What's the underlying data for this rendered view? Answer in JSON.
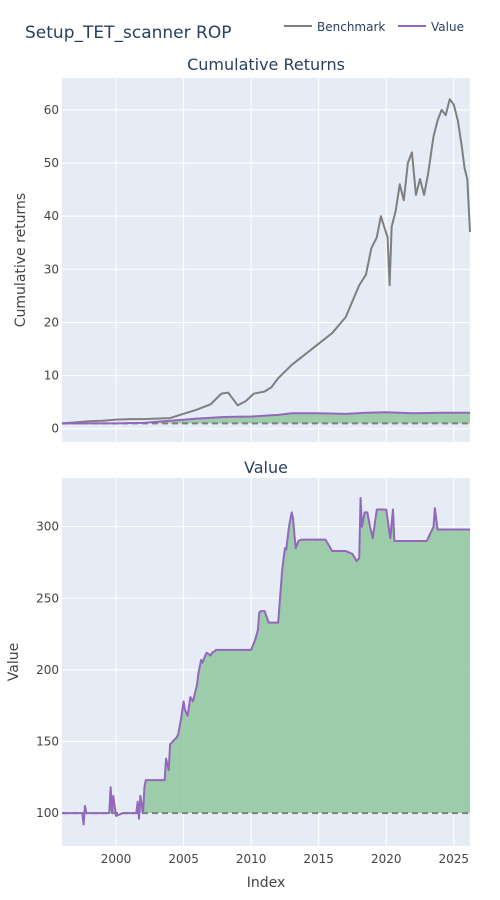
{
  "title": "Setup_TET_scanner ROP",
  "legend": {
    "placement": "top-right",
    "items": [
      {
        "name": "Benchmark",
        "color": "#7f7f7f"
      },
      {
        "name": "Value",
        "color": "#9467bd"
      }
    ]
  },
  "colors": {
    "plot_bg": "#e5ecf6",
    "grid": "#ffffff",
    "benchmark": "#7f7f7f",
    "value": "#9467bd",
    "fill": "#8fc79b",
    "baseline": "#7f7f7f"
  },
  "chart_data": [
    {
      "type": "line",
      "title": "Cumulative Returns",
      "xlabel": "",
      "ylabel": "Cumulative returns",
      "xlim": [
        1996.0,
        2026.2
      ],
      "ylim": [
        -2.5,
        66
      ],
      "yticks": [
        0,
        10,
        20,
        30,
        40,
        50,
        60
      ],
      "xticks": [
        2000,
        2005,
        2010,
        2015,
        2020,
        2025
      ],
      "grid": true,
      "baseline": 1,
      "series": [
        {
          "name": "Benchmark",
          "x": [
            1996.0,
            1997.0,
            1998.0,
            1999.0,
            2000.0,
            2001.0,
            2002.0,
            2003.0,
            2004.0,
            2005.0,
            2006.0,
            2007.0,
            2007.8,
            2008.3,
            2009.0,
            2009.6,
            2010.2,
            2011.0,
            2011.5,
            2012.0,
            2013.0,
            2014.0,
            2015.0,
            2016.0,
            2017.0,
            2017.5,
            2018.0,
            2018.5,
            2018.9,
            2019.3,
            2019.6,
            2020.1,
            2020.25,
            2020.4,
            2020.7,
            2021.0,
            2021.3,
            2021.6,
            2021.9,
            2022.2,
            2022.5,
            2022.8,
            2023.1,
            2023.5,
            2023.8,
            2024.1,
            2024.4,
            2024.7,
            2025.0,
            2025.3,
            2025.6,
            2025.8,
            2026.0,
            2026.2
          ],
          "y": [
            1.0,
            1.2,
            1.4,
            1.5,
            1.7,
            1.8,
            1.8,
            1.9,
            2.0,
            2.8,
            3.6,
            4.6,
            6.6,
            6.8,
            4.4,
            5.2,
            6.6,
            7.0,
            7.8,
            9.5,
            12.0,
            14.0,
            16.0,
            18.0,
            21.0,
            24.0,
            27.0,
            29.0,
            34.0,
            36.0,
            40.0,
            36.0,
            27.0,
            38.0,
            41.0,
            46.0,
            43.0,
            50.0,
            52.0,
            44.0,
            47.0,
            44.0,
            48.0,
            55.0,
            58.0,
            60.0,
            59.0,
            62.0,
            61.0,
            58.0,
            53.0,
            49.0,
            47.0,
            37.0
          ]
        },
        {
          "name": "Value",
          "x": [
            1996.0,
            1998.0,
            2000.0,
            2002.0,
            2004.0,
            2006.0,
            2008.0,
            2010.0,
            2012.0,
            2013.0,
            2015.0,
            2017.0,
            2018.5,
            2020.0,
            2022.0,
            2024.0,
            2026.2
          ],
          "y": [
            1.0,
            1.0,
            1.0,
            1.1,
            1.5,
            1.9,
            2.2,
            2.3,
            2.6,
            2.9,
            2.9,
            2.8,
            3.0,
            3.1,
            2.9,
            3.0,
            3.0
          ]
        }
      ]
    },
    {
      "type": "area",
      "title": "Value",
      "xlabel": "Index",
      "ylabel": "Value",
      "xlim": [
        1996.0,
        2026.2
      ],
      "ylim": [
        77,
        334
      ],
      "yticks": [
        100,
        150,
        200,
        250,
        300
      ],
      "xticks": [
        2000,
        2005,
        2010,
        2015,
        2020,
        2025
      ],
      "grid": true,
      "baseline": 100,
      "series": [
        {
          "name": "Value",
          "x": [
            1996.0,
            1997.5,
            1997.6,
            1997.7,
            1997.8,
            1998.0,
            1999.5,
            1999.6,
            1999.7,
            1999.8,
            2000.0,
            2000.5,
            2001.5,
            2001.6,
            2001.7,
            2001.8,
            2002.0,
            2002.1,
            2002.2,
            2002.3,
            2003.6,
            2003.7,
            2003.9,
            2004.0,
            2004.5,
            2004.6,
            2004.8,
            2005.0,
            2005.1,
            2005.3,
            2005.5,
            2005.7,
            2006.0,
            2006.1,
            2006.3,
            2006.4,
            2006.6,
            2006.7,
            2007.0,
            2007.1,
            2007.3,
            2007.4,
            2007.6,
            2007.8,
            2008.0,
            2008.3,
            2009.0,
            2010.0,
            2010.3,
            2010.5,
            2010.6,
            2010.7,
            2011.0,
            2011.3,
            2011.6,
            2012.0,
            2012.3,
            2012.5,
            2012.6,
            2012.8,
            2013.0,
            2013.1,
            2013.2,
            2013.3,
            2013.5,
            2013.7,
            2014.0,
            2014.5,
            2015.5,
            2016.0,
            2017.0,
            2017.5,
            2017.8,
            2018.0,
            2018.1,
            2018.2,
            2018.4,
            2018.6,
            2018.8,
            2019.0,
            2019.3,
            2019.6,
            2020.0,
            2020.3,
            2020.5,
            2020.6,
            2020.7,
            2021.0,
            2022.0,
            2023.0,
            2023.5,
            2023.6,
            2023.8,
            2024.0,
            2025.0,
            2026.2
          ],
          "y": [
            100,
            100,
            92,
            105,
            100,
            100,
            100,
            118,
            100,
            112,
            98,
            100,
            100,
            108,
            96,
            112,
            100,
            118,
            123,
            123,
            123,
            138,
            130,
            148,
            153,
            155,
            165,
            178,
            172,
            168,
            181,
            178,
            190,
            198,
            207,
            205,
            210,
            212,
            210,
            212,
            213,
            214,
            214,
            214,
            214,
            214,
            214,
            214,
            221,
            228,
            240,
            241,
            241,
            233,
            233,
            233,
            270,
            285,
            284,
            300,
            310,
            306,
            295,
            285,
            290,
            291,
            291,
            291,
            291,
            283,
            283,
            281,
            276,
            278,
            320,
            300,
            310,
            310,
            300,
            292,
            312,
            312,
            312,
            292,
            312,
            290,
            290,
            290,
            290,
            290,
            300,
            313,
            298,
            298,
            298,
            298
          ]
        }
      ]
    }
  ]
}
